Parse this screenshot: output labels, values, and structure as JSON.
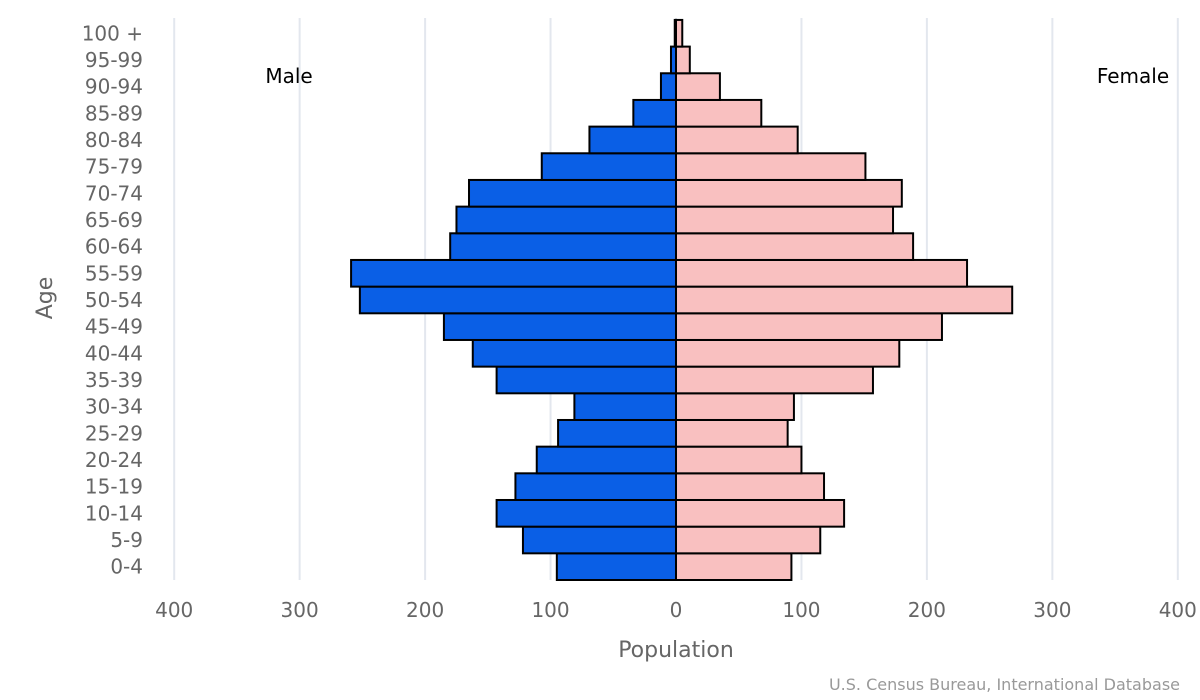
{
  "chart_data": {
    "type": "bar",
    "orientation": "horizontal",
    "layout": "population-pyramid",
    "categories": [
      "0-4",
      "5-9",
      "10-14",
      "15-19",
      "20-24",
      "25-29",
      "30-34",
      "35-39",
      "40-44",
      "45-49",
      "50-54",
      "55-59",
      "60-64",
      "65-69",
      "70-74",
      "75-79",
      "80-84",
      "85-89",
      "90-94",
      "95-99",
      "100 +"
    ],
    "series": [
      {
        "name": "Male",
        "color": "#0a5fe6",
        "values": [
          95,
          122,
          143,
          128,
          111,
          94,
          81,
          143,
          162,
          185,
          252,
          259,
          180,
          175,
          165,
          107,
          69,
          34,
          12,
          4,
          1
        ]
      },
      {
        "name": "Female",
        "color": "#f9c0c0",
        "values": [
          92,
          115,
          134,
          118,
          100,
          89,
          94,
          157,
          178,
          212,
          268,
          232,
          189,
          173,
          180,
          151,
          97,
          68,
          35,
          11,
          5
        ]
      }
    ],
    "xlabel": "Population",
    "ylabel": "Age",
    "xticks": [
      400,
      300,
      200,
      100,
      0,
      100,
      200,
      300,
      400
    ],
    "xlim": [
      -400,
      400
    ],
    "grid": "vertical",
    "source": "U.S. Census Bureau, International Database"
  }
}
